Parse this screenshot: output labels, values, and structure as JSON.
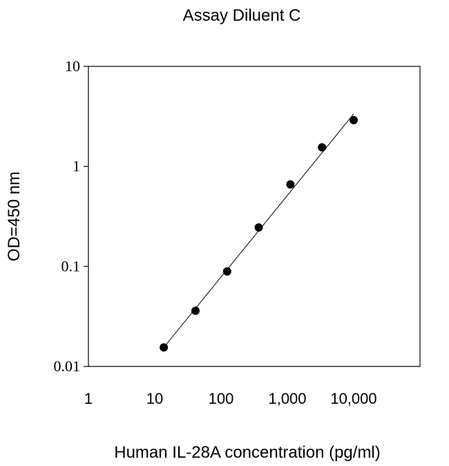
{
  "chart_data": {
    "type": "scatter",
    "title": "Assay Diluent C",
    "xlabel": "Human IL-28A concentration (pg/ml)",
    "ylabel": "OD=450 nm",
    "x_scale": "log",
    "y_scale": "log",
    "xlim": [
      1,
      100000
    ],
    "ylim": [
      0.01,
      10
    ],
    "x_ticks": [
      {
        "value": 1,
        "label": "1"
      },
      {
        "value": 10,
        "label": "10"
      },
      {
        "value": 100,
        "label": "100"
      },
      {
        "value": 1000,
        "label": "1,000"
      },
      {
        "value": 10000,
        "label": "10,000"
      }
    ],
    "y_ticks": [
      {
        "value": 0.01,
        "label": "0.01"
      },
      {
        "value": 0.1,
        "label": "0.1"
      },
      {
        "value": 1,
        "label": "1"
      },
      {
        "value": 10,
        "label": "10"
      }
    ],
    "points": [
      {
        "x": 13.7,
        "y": 0.0155
      },
      {
        "x": 41.2,
        "y": 0.036
      },
      {
        "x": 123.5,
        "y": 0.089
      },
      {
        "x": 370,
        "y": 0.245
      },
      {
        "x": 1111,
        "y": 0.66
      },
      {
        "x": 3333,
        "y": 1.55
      },
      {
        "x": 10000,
        "y": 2.9
      }
    ],
    "fit_line": {
      "x_start": 13.7,
      "y_start": 0.0155,
      "x_end": 10000,
      "y_end": 3.35
    },
    "grid": false,
    "legend": "none",
    "colors": {
      "marker": "#000000",
      "line": "#000000",
      "axis": "#000000"
    }
  }
}
